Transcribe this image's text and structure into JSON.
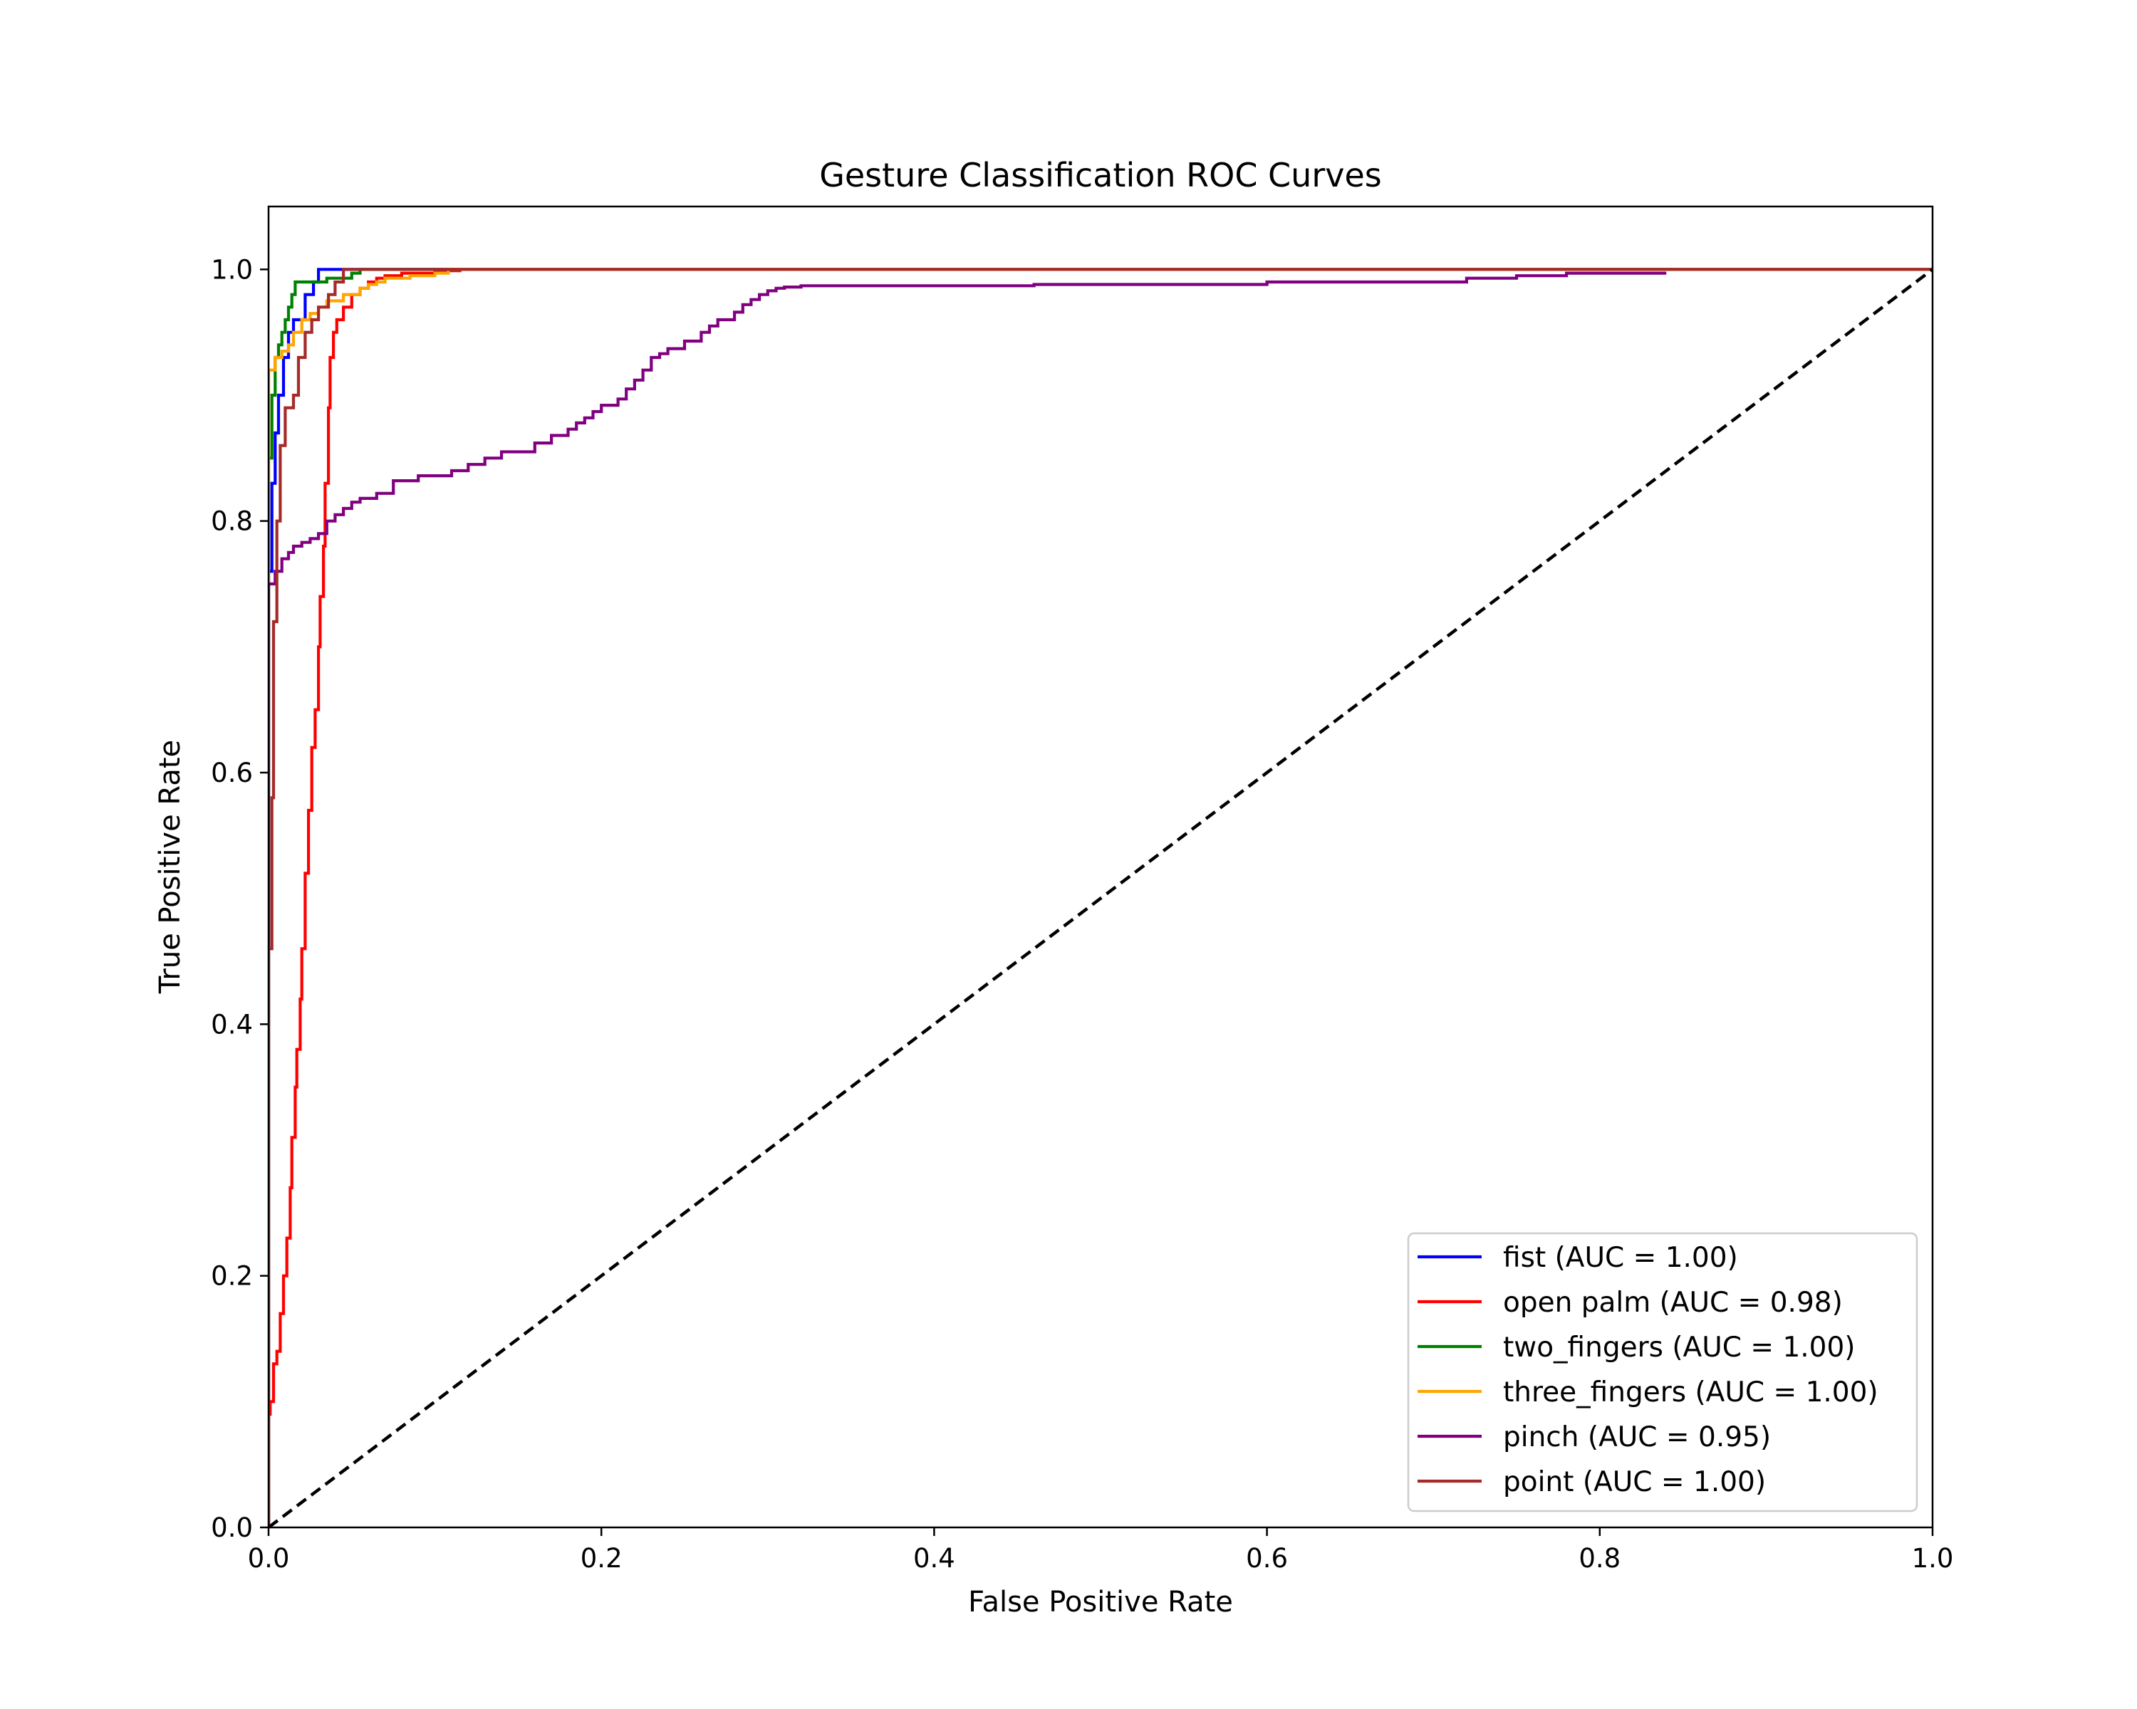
{
  "chart_data": {
    "type": "line",
    "title": "Gesture Classification ROC Curves",
    "xlabel": "False Positive Rate",
    "ylabel": "True Positive Rate",
    "xlim": [
      0.0,
      1.0
    ],
    "ylim": [
      0.0,
      1.05
    ],
    "xticks": [
      "0.0",
      "0.2",
      "0.4",
      "0.6",
      "0.8",
      "1.0"
    ],
    "yticks": [
      "0.0",
      "0.2",
      "0.4",
      "0.6",
      "0.8",
      "1.0"
    ],
    "grid": false,
    "legend_position": "lower-right",
    "series": [
      {
        "name": "fist (AUC = 1.00)",
        "color": "#0000ff",
        "x": [
          0.0,
          0.0,
          0.002,
          0.002,
          0.004,
          0.004,
          0.006,
          0.006,
          0.009,
          0.009,
          0.012,
          0.012,
          0.015,
          0.015,
          0.022,
          0.022,
          0.027,
          0.027,
          0.03,
          0.03,
          0.04,
          0.042,
          1.0
        ],
        "y": [
          0.0,
          0.76,
          0.76,
          0.83,
          0.83,
          0.87,
          0.87,
          0.9,
          0.9,
          0.93,
          0.93,
          0.95,
          0.95,
          0.96,
          0.96,
          0.98,
          0.98,
          0.99,
          0.99,
          1.0,
          1.0,
          1.0,
          1.0
        ]
      },
      {
        "name": "open palm (AUC = 0.98)",
        "color": "#ff0000",
        "x": [
          0.0,
          0.0,
          0.001,
          0.001,
          0.003,
          0.003,
          0.005,
          0.005,
          0.007,
          0.007,
          0.009,
          0.009,
          0.011,
          0.011,
          0.013,
          0.013,
          0.014,
          0.014,
          0.016,
          0.016,
          0.017,
          0.017,
          0.019,
          0.019,
          0.02,
          0.02,
          0.022,
          0.022,
          0.024,
          0.024,
          0.026,
          0.026,
          0.028,
          0.028,
          0.03,
          0.03,
          0.031,
          0.031,
          0.033,
          0.033,
          0.034,
          0.034,
          0.036,
          0.036,
          0.037,
          0.037,
          0.039,
          0.039,
          0.041,
          0.041,
          0.045,
          0.045,
          0.05,
          0.05,
          0.055,
          0.055,
          0.06,
          0.06,
          0.065,
          0.065,
          0.07,
          0.07,
          0.08,
          0.08,
          0.1,
          0.1,
          0.115,
          0.115,
          1.0
        ],
        "y": [
          0.0,
          0.09,
          0.09,
          0.1,
          0.1,
          0.13,
          0.13,
          0.14,
          0.14,
          0.17,
          0.17,
          0.2,
          0.2,
          0.23,
          0.23,
          0.27,
          0.27,
          0.31,
          0.31,
          0.35,
          0.35,
          0.38,
          0.38,
          0.42,
          0.42,
          0.46,
          0.46,
          0.52,
          0.52,
          0.57,
          0.57,
          0.62,
          0.62,
          0.65,
          0.65,
          0.7,
          0.7,
          0.74,
          0.74,
          0.78,
          0.78,
          0.83,
          0.83,
          0.89,
          0.89,
          0.93,
          0.93,
          0.95,
          0.95,
          0.96,
          0.96,
          0.97,
          0.97,
          0.98,
          0.98,
          0.985,
          0.985,
          0.99,
          0.99,
          0.993,
          0.993,
          0.995,
          0.995,
          0.997,
          0.997,
          0.999,
          0.999,
          1.0,
          1.0
        ]
      },
      {
        "name": "two_fingers (AUC = 1.00)",
        "color": "#008000",
        "x": [
          0.0,
          0.0,
          0.002,
          0.002,
          0.004,
          0.004,
          0.006,
          0.006,
          0.008,
          0.008,
          0.01,
          0.01,
          0.012,
          0.012,
          0.014,
          0.014,
          0.016,
          0.016,
          0.035,
          0.035,
          0.05,
          0.05,
          0.055,
          0.055,
          1.0
        ],
        "y": [
          0.0,
          0.85,
          0.85,
          0.9,
          0.9,
          0.93,
          0.93,
          0.94,
          0.94,
          0.95,
          0.95,
          0.96,
          0.96,
          0.97,
          0.97,
          0.98,
          0.98,
          0.99,
          0.99,
          0.993,
          0.993,
          0.997,
          0.997,
          1.0,
          1.0
        ]
      },
      {
        "name": "three_fingers (AUC = 1.00)",
        "color": "#ffa500",
        "x": [
          0.0,
          0.0,
          0.004,
          0.004,
          0.008,
          0.008,
          0.012,
          0.012,
          0.015,
          0.015,
          0.02,
          0.02,
          0.025,
          0.025,
          0.03,
          0.03,
          0.035,
          0.035,
          0.045,
          0.045,
          0.055,
          0.055,
          0.06,
          0.06,
          0.065,
          0.065,
          0.07,
          0.07,
          0.085,
          0.085,
          0.1,
          0.1,
          0.108,
          0.108,
          1.0
        ],
        "y": [
          0.0,
          0.92,
          0.92,
          0.93,
          0.93,
          0.935,
          0.935,
          0.94,
          0.94,
          0.95,
          0.95,
          0.96,
          0.96,
          0.965,
          0.965,
          0.97,
          0.97,
          0.975,
          0.975,
          0.98,
          0.98,
          0.985,
          0.985,
          0.988,
          0.988,
          0.99,
          0.99,
          0.993,
          0.993,
          0.995,
          0.995,
          0.997,
          0.997,
          1.0,
          1.0
        ]
      },
      {
        "name": "pinch (AUC = 0.95)",
        "color": "#800080",
        "x": [
          0.0,
          0.0,
          0.004,
          0.004,
          0.008,
          0.008,
          0.012,
          0.012,
          0.015,
          0.015,
          0.02,
          0.02,
          0.025,
          0.025,
          0.03,
          0.03,
          0.035,
          0.035,
          0.04,
          0.04,
          0.045,
          0.045,
          0.05,
          0.05,
          0.055,
          0.055,
          0.065,
          0.065,
          0.075,
          0.075,
          0.09,
          0.09,
          0.11,
          0.11,
          0.12,
          0.12,
          0.13,
          0.13,
          0.14,
          0.14,
          0.16,
          0.16,
          0.17,
          0.17,
          0.18,
          0.18,
          0.185,
          0.185,
          0.19,
          0.19,
          0.195,
          0.195,
          0.2,
          0.2,
          0.21,
          0.21,
          0.215,
          0.215,
          0.22,
          0.22,
          0.225,
          0.225,
          0.23,
          0.23,
          0.235,
          0.235,
          0.24,
          0.24,
          0.25,
          0.25,
          0.26,
          0.26,
          0.265,
          0.265,
          0.27,
          0.27,
          0.28,
          0.28,
          0.285,
          0.285,
          0.29,
          0.29,
          0.295,
          0.295,
          0.3,
          0.3,
          0.305,
          0.305,
          0.31,
          0.31,
          0.32,
          0.32,
          0.46,
          0.46,
          0.6,
          0.6,
          0.72,
          0.72,
          0.75,
          0.75,
          0.78,
          0.78,
          0.84
        ],
        "y": [
          0.0,
          0.75,
          0.75,
          0.76,
          0.76,
          0.77,
          0.77,
          0.775,
          0.775,
          0.78,
          0.78,
          0.783,
          0.783,
          0.786,
          0.786,
          0.79,
          0.79,
          0.8,
          0.8,
          0.805,
          0.805,
          0.81,
          0.81,
          0.815,
          0.815,
          0.818,
          0.818,
          0.822,
          0.822,
          0.832,
          0.832,
          0.836,
          0.836,
          0.84,
          0.84,
          0.845,
          0.845,
          0.85,
          0.85,
          0.855,
          0.855,
          0.862,
          0.862,
          0.868,
          0.868,
          0.873,
          0.873,
          0.878,
          0.878,
          0.882,
          0.882,
          0.887,
          0.887,
          0.892,
          0.892,
          0.897,
          0.897,
          0.905,
          0.905,
          0.912,
          0.912,
          0.92,
          0.92,
          0.93,
          0.93,
          0.933,
          0.933,
          0.937,
          0.937,
          0.943,
          0.943,
          0.95,
          0.95,
          0.955,
          0.955,
          0.96,
          0.96,
          0.966,
          0.966,
          0.972,
          0.972,
          0.976,
          0.976,
          0.98,
          0.98,
          0.983,
          0.983,
          0.985,
          0.985,
          0.986,
          0.986,
          0.987,
          0.987,
          0.988,
          0.988,
          0.99,
          0.99,
          0.993,
          0.993,
          0.995,
          0.995,
          0.997,
          0.997
        ]
      },
      {
        "name": "point (AUC = 1.00)",
        "color": "#a52a2a",
        "x": [
          0.0,
          0.0,
          0.002,
          0.002,
          0.003,
          0.003,
          0.005,
          0.005,
          0.007,
          0.007,
          0.01,
          0.01,
          0.015,
          0.015,
          0.018,
          0.018,
          0.022,
          0.022,
          0.026,
          0.026,
          0.03,
          0.03,
          0.036,
          0.036,
          0.04,
          0.04,
          0.045,
          0.045,
          1.0
        ],
        "y": [
          0.0,
          0.46,
          0.46,
          0.58,
          0.58,
          0.72,
          0.72,
          0.8,
          0.8,
          0.86,
          0.86,
          0.89,
          0.89,
          0.9,
          0.9,
          0.93,
          0.93,
          0.95,
          0.95,
          0.96,
          0.96,
          0.97,
          0.97,
          0.98,
          0.98,
          0.99,
          0.99,
          1.0,
          1.0
        ]
      }
    ],
    "reference_line": {
      "x": [
        0.0,
        1.0
      ],
      "y": [
        0.0,
        1.0
      ],
      "color": "#000000",
      "style": "dashed"
    }
  }
}
